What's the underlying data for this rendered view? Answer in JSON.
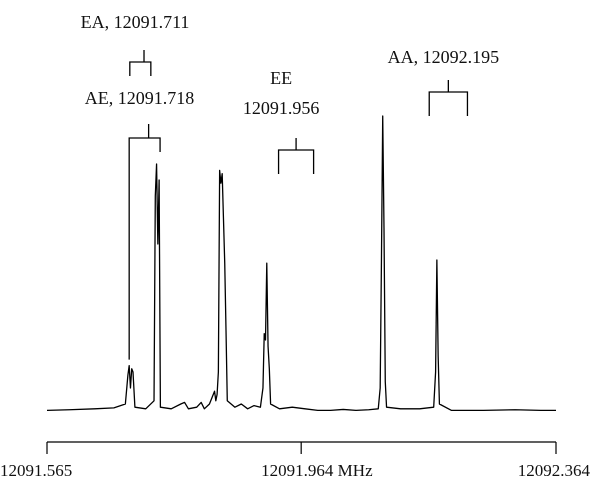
{
  "chart_data": {
    "type": "line",
    "xunit": "MHz",
    "xlim": [
      12091.565,
      12092.364
    ],
    "ylim": [
      0,
      1
    ],
    "grid": false,
    "tick_labels": [
      {
        "x": 12091.565,
        "label": "12091.565"
      },
      {
        "x": 12091.964,
        "label": "12091.964 MHz"
      },
      {
        "x": 12092.364,
        "label": "12092.364"
      }
    ],
    "minor_ticks": [
      12091.565,
      12091.964,
      12092.364
    ],
    "annotations": [
      {
        "id": "ea",
        "line1": "EA, 12091.711",
        "line2": "",
        "center": 12091.711,
        "left": 12091.695,
        "right": 12091.728,
        "drop": 0.46
      },
      {
        "id": "ae",
        "line1": "AE, 12091.718",
        "line2": "",
        "center": 12091.718,
        "left": 12091.694,
        "right": 12091.7425,
        "drop": 0.04
      },
      {
        "id": "ee",
        "line1": "EE",
        "line2": "12091.956",
        "center": 12091.956,
        "left": 12091.9285,
        "right": 12091.9835,
        "drop": 0.84
      },
      {
        "id": "aa",
        "line1": "AA, 12092.195",
        "line2": "",
        "center": 12092.195,
        "left": 12092.165,
        "right": 12092.225,
        "drop": 0.95
      }
    ],
    "series": [
      {
        "values": [
          [
            12091.565,
            0.03
          ],
          [
            12091.6,
            0.032
          ],
          [
            12091.64,
            0.035
          ],
          [
            12091.67,
            0.038
          ],
          [
            12091.688,
            0.05
          ],
          [
            12091.692,
            0.14
          ],
          [
            12091.694,
            0.17
          ],
          [
            12091.696,
            0.1
          ],
          [
            12091.698,
            0.16
          ],
          [
            12091.7,
            0.15
          ],
          [
            12091.703,
            0.04
          ],
          [
            12091.72,
            0.035
          ],
          [
            12091.733,
            0.06
          ],
          [
            12091.735,
            0.7
          ],
          [
            12091.737,
            0.8
          ],
          [
            12091.739,
            0.55
          ],
          [
            12091.741,
            0.75
          ],
          [
            12091.743,
            0.04
          ],
          [
            12091.76,
            0.035
          ],
          [
            12091.775,
            0.05
          ],
          [
            12091.781,
            0.055
          ],
          [
            12091.787,
            0.035
          ],
          [
            12091.8,
            0.04
          ],
          [
            12091.807,
            0.055
          ],
          [
            12091.812,
            0.035
          ],
          [
            12091.82,
            0.05
          ],
          [
            12091.828,
            0.09
          ],
          [
            12091.83,
            0.06
          ],
          [
            12091.832,
            0.08
          ],
          [
            12091.834,
            0.15
          ],
          [
            12091.836,
            0.78
          ],
          [
            12091.838,
            0.74
          ],
          [
            12091.84,
            0.77
          ],
          [
            12091.842,
            0.63
          ],
          [
            12091.844,
            0.49
          ],
          [
            12091.846,
            0.28
          ],
          [
            12091.848,
            0.06
          ],
          [
            12091.86,
            0.04
          ],
          [
            12091.87,
            0.05
          ],
          [
            12091.88,
            0.035
          ],
          [
            12091.89,
            0.045
          ],
          [
            12091.9,
            0.04
          ],
          [
            12091.904,
            0.1
          ],
          [
            12091.906,
            0.27
          ],
          [
            12091.908,
            0.25
          ],
          [
            12091.91,
            0.49
          ],
          [
            12091.912,
            0.23
          ],
          [
            12091.914,
            0.16
          ],
          [
            12091.916,
            0.05
          ],
          [
            12091.93,
            0.035
          ],
          [
            12091.95,
            0.04
          ],
          [
            12091.97,
            0.035
          ],
          [
            12091.99,
            0.03
          ],
          [
            12092.01,
            0.03
          ],
          [
            12092.03,
            0.033
          ],
          [
            12092.05,
            0.03
          ],
          [
            12092.07,
            0.032
          ],
          [
            12092.085,
            0.035
          ],
          [
            12092.088,
            0.1
          ],
          [
            12092.09,
            0.5
          ],
          [
            12092.092,
            0.95
          ],
          [
            12092.094,
            0.6
          ],
          [
            12092.096,
            0.12
          ],
          [
            12092.098,
            0.04
          ],
          [
            12092.12,
            0.035
          ],
          [
            12092.15,
            0.035
          ],
          [
            12092.172,
            0.04
          ],
          [
            12092.175,
            0.15
          ],
          [
            12092.177,
            0.5
          ],
          [
            12092.179,
            0.2
          ],
          [
            12092.181,
            0.05
          ],
          [
            12092.2,
            0.03
          ],
          [
            12092.25,
            0.03
          ],
          [
            12092.3,
            0.032
          ],
          [
            12092.34,
            0.03
          ],
          [
            12092.364,
            0.03
          ]
        ]
      }
    ]
  }
}
